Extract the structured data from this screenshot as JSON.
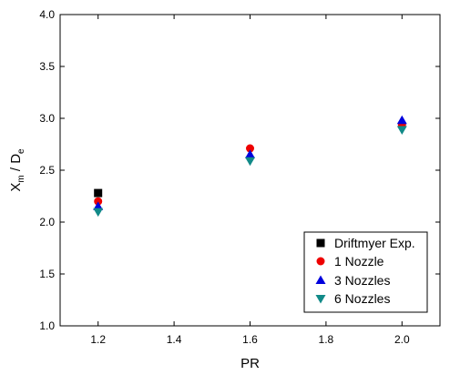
{
  "chart_data": {
    "type": "scatter",
    "title": "",
    "xlabel": "PR",
    "ylabel_main": "X",
    "ylabel_sub1": "m",
    "ylabel_mid": " / D",
    "ylabel_sub2": "e",
    "xlim": [
      1.1,
      2.1
    ],
    "ylim": [
      1.0,
      4.0
    ],
    "xticks": [
      1.2,
      1.4,
      1.6,
      1.8,
      2.0
    ],
    "yticks": [
      1.0,
      1.5,
      2.0,
      2.5,
      3.0,
      3.5,
      4.0
    ],
    "xtick_labels": [
      "1.2",
      "1.4",
      "1.6",
      "1.8",
      "2.0"
    ],
    "ytick_labels": [
      "1.0",
      "1.5",
      "2.0",
      "2.5",
      "3.0",
      "3.5",
      "4.0"
    ],
    "grid": false,
    "legend_position": "bottom-right",
    "series": [
      {
        "name": "Driftmyer Exp.",
        "marker": "square",
        "color": "#000000",
        "points": [
          {
            "x": 1.2,
            "y": 2.28
          }
        ]
      },
      {
        "name": "1 Nozzle",
        "marker": "circle",
        "color": "#ee0000",
        "points": [
          {
            "x": 1.2,
            "y": 2.2
          },
          {
            "x": 1.6,
            "y": 2.71
          },
          {
            "x": 2.0,
            "y": 2.94
          }
        ]
      },
      {
        "name": "3 Nozzles",
        "marker": "triangle-up",
        "color": "#0000dd",
        "points": [
          {
            "x": 1.2,
            "y": 2.15
          },
          {
            "x": 1.6,
            "y": 2.65
          },
          {
            "x": 2.0,
            "y": 2.98
          }
        ]
      },
      {
        "name": "6 Nozzles",
        "marker": "triangle-down",
        "color": "#118a88",
        "points": [
          {
            "x": 1.2,
            "y": 2.1
          },
          {
            "x": 1.6,
            "y": 2.59
          },
          {
            "x": 2.0,
            "y": 2.89
          }
        ]
      }
    ]
  }
}
